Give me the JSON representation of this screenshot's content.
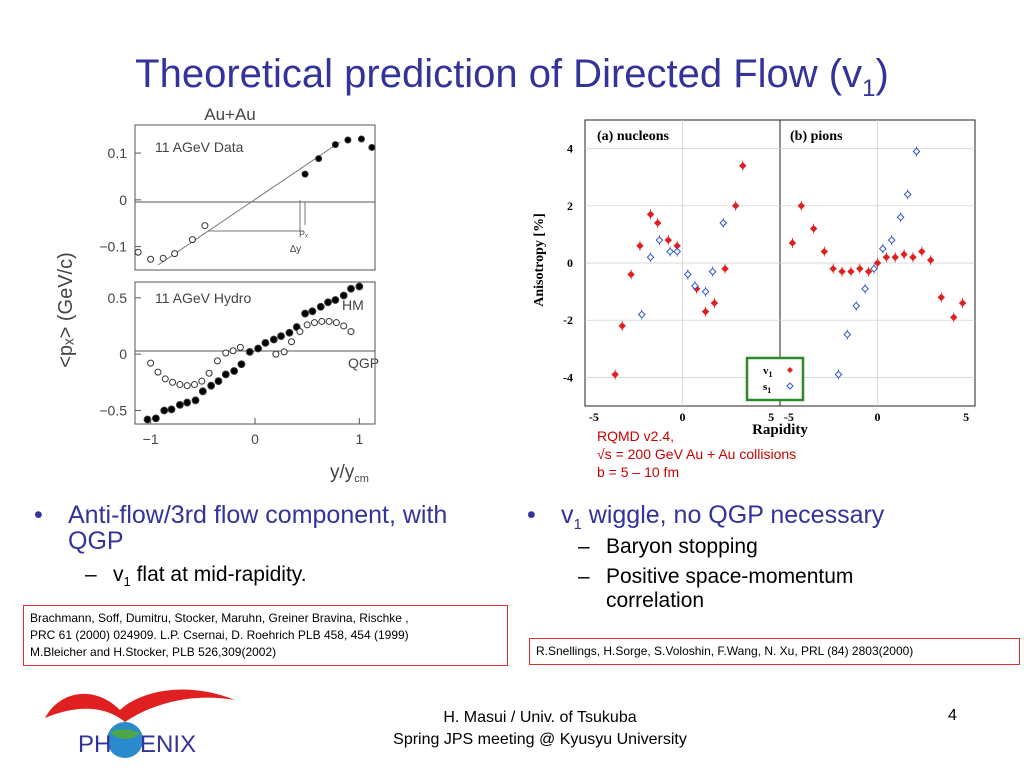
{
  "slide": {
    "title_main": "Theoretical prediction of Directed Flow (v",
    "title_sub": "1",
    "title_end": ")"
  },
  "left_figure": {
    "top_label": "Au+Au",
    "ylabel": "<pₓ> (GeV/c)",
    "xlabel": "y/y",
    "xlabel_sub": "cm",
    "panel_top": {
      "label": "11 AGeV Data",
      "yticks": [
        "0.1",
        "0",
        "−0.1"
      ],
      "annotation_px": "Pₓ",
      "annotation_dy": "∆y"
    },
    "panel_bottom": {
      "label": "11 AGeV Hydro",
      "yticks": [
        "0.5",
        "0",
        "−0.5"
      ],
      "series": [
        "HM",
        "QGP"
      ]
    },
    "xticks": [
      "−1",
      "0",
      "1"
    ]
  },
  "right_figure": {
    "panel_a": "(a) nucleons",
    "panel_b": "(b) pions",
    "ylabel": "Anisotropy [%]",
    "xlabel": "Rapidity",
    "yticks": [
      "4",
      "2",
      "0",
      "-2",
      "-4"
    ],
    "xticks_a": [
      "-5",
      "0",
      "5"
    ],
    "xticks_b": [
      "-5",
      "0",
      "5"
    ],
    "legend": [
      {
        "label": "v",
        "sub": "1",
        "color": "#e02020"
      },
      {
        "label": "s",
        "sub": "1",
        "color": "#3355cc"
      }
    ],
    "legend_box_color": "#2a8a2a"
  },
  "chart_data": [
    {
      "type": "scatter",
      "title": "11 AGeV Data",
      "xlabel": "y/y_cm",
      "ylabel": "<p_x> (GeV/c)",
      "xlim": [
        -1.15,
        1.15
      ],
      "ylim": [
        -0.15,
        0.16
      ],
      "series": [
        {
          "marker": "open",
          "x": [
            -1.12,
            -1.0,
            -0.88,
            -0.77,
            -0.6,
            -0.48
          ],
          "y": [
            -0.112,
            -0.127,
            -0.125,
            -0.115,
            -0.085,
            -0.055
          ]
        },
        {
          "marker": "filled",
          "x": [
            0.48,
            0.61,
            0.77,
            0.89,
            1.02,
            1.12
          ],
          "y": [
            0.055,
            0.088,
            0.118,
            0.128,
            0.13,
            0.112
          ]
        }
      ]
    },
    {
      "type": "scatter",
      "title": "11 AGeV Hydro",
      "xlabel": "y/y_cm",
      "xlim": [
        -1.15,
        1.15
      ],
      "ylim": [
        -0.62,
        0.64
      ],
      "series": [
        {
          "name": "HM",
          "marker": "filled",
          "x": [
            -1.03,
            -0.95,
            -0.87,
            -0.8,
            -0.72,
            -0.65,
            -0.57,
            -0.5,
            -0.42,
            -0.35,
            -0.28,
            -0.2,
            -0.13,
            -0.05,
            0.03,
            0.1,
            0.18,
            0.25,
            0.33,
            0.4,
            0.48,
            0.55,
            0.63,
            0.7,
            0.77,
            0.85,
            0.92,
            1.0
          ],
          "y": [
            -0.58,
            -0.57,
            -0.5,
            -0.49,
            -0.45,
            -0.43,
            -0.41,
            -0.33,
            -0.28,
            -0.24,
            -0.18,
            -0.15,
            -0.09,
            0.02,
            0.05,
            0.1,
            0.13,
            0.16,
            0.19,
            0.24,
            0.36,
            0.38,
            0.42,
            0.46,
            0.48,
            0.52,
            0.58,
            0.6
          ]
        },
        {
          "name": "QGP",
          "marker": "open",
          "x": [
            -1.0,
            -0.93,
            -0.86,
            -0.79,
            -0.72,
            -0.65,
            -0.58,
            -0.51,
            -0.44,
            -0.36,
            -0.28,
            -0.21,
            -0.14,
            0.2,
            0.28,
            0.35,
            0.43,
            0.5,
            0.57,
            0.64,
            0.71,
            0.78,
            0.85,
            0.92
          ],
          "y": [
            -0.08,
            -0.16,
            -0.22,
            -0.25,
            -0.27,
            -0.28,
            -0.27,
            -0.24,
            -0.17,
            -0.06,
            0.01,
            0.03,
            0.06,
            0.0,
            0.02,
            0.11,
            0.2,
            0.26,
            0.28,
            0.29,
            0.29,
            0.28,
            0.25,
            0.2
          ]
        }
      ]
    },
    {
      "type": "scatter",
      "title": "(a) nucleons",
      "xlabel": "Rapidity",
      "ylabel": "Anisotropy [%]",
      "xlim": [
        -5.5,
        5.5
      ],
      "ylim": [
        -5,
        5
      ],
      "series": [
        {
          "name": "v1",
          "marker": "filled-diamond",
          "x": [
            -3.8,
            -3.4,
            -2.9,
            -2.4,
            -1.8,
            -1.4,
            -0.8,
            -0.3,
            0.3,
            0.8,
            1.3,
            1.8,
            2.4,
            3.0,
            3.4
          ],
          "y": [
            -3.9,
            -2.2,
            -0.4,
            0.6,
            1.7,
            1.4,
            0.8,
            0.6,
            -0.4,
            -0.9,
            -1.7,
            -1.4,
            -0.2,
            2.0,
            3.4
          ]
        },
        {
          "name": "s1",
          "marker": "open-diamond",
          "x": [
            -2.3,
            -1.8,
            -1.3,
            -0.7,
            -0.3,
            0.3,
            0.7,
            1.3,
            1.7,
            2.3
          ],
          "y": [
            -1.8,
            0.2,
            0.8,
            0.4,
            0.4,
            -0.4,
            -0.8,
            -1.0,
            -0.3,
            1.4
          ]
        }
      ]
    },
    {
      "type": "scatter",
      "title": "(b) pions",
      "xlabel": "Rapidity",
      "xlim": [
        -5.5,
        5.5
      ],
      "ylim": [
        -5,
        5
      ],
      "series": [
        {
          "name": "v1",
          "marker": "filled-diamond",
          "x": [
            -4.8,
            -4.3,
            -3.6,
            -3.0,
            -2.5,
            -2.0,
            -1.5,
            -1.0,
            -0.5,
            0.0,
            0.5,
            1.0,
            1.5,
            2.0,
            2.5,
            3.0,
            3.6,
            4.3,
            4.8
          ],
          "y": [
            0.7,
            2.0,
            1.2,
            0.4,
            -0.2,
            -0.3,
            -0.3,
            -0.2,
            -0.3,
            0.0,
            0.2,
            0.2,
            0.3,
            0.2,
            0.4,
            0.1,
            -1.2,
            -1.9,
            -1.4
          ]
        },
        {
          "name": "s1",
          "marker": "open-diamond",
          "x": [
            -2.2,
            -1.7,
            -1.2,
            -0.7,
            -0.2,
            0.3,
            0.8,
            1.3,
            1.7,
            2.2
          ],
          "y": [
            -3.9,
            -2.5,
            -1.5,
            -0.9,
            -0.2,
            0.5,
            0.8,
            1.6,
            2.4,
            3.9
          ]
        }
      ]
    }
  ],
  "rqmd": {
    "line1": "RQMD v2.4,",
    "line2": "√s = 200 GeV Au + Au collisions",
    "line3": "b = 5 – 10 fm"
  },
  "left_text": {
    "bullet": "Anti-flow/3rd flow component, with QGP",
    "sub1_pre": "v",
    "sub1_sub": "1",
    "sub1_post": " flat at mid-rapidity."
  },
  "right_text": {
    "bullet_pre": "v",
    "bullet_sub": "1",
    "bullet_post": " wiggle, no QGP necessary",
    "sub1": "Baryon stopping",
    "sub2": "Positive space-momentum correlation"
  },
  "refs": {
    "left_line1": "Brachmann, Soff, Dumitru, Stocker, Maruhn, Greiner Bravina, Rischke ,",
    "left_line2": "PRC 61 (2000) 024909. L.P. Csernai, D. Roehrich PLB 458, 454 (1999)",
    "left_line3": "M.Bleicher and H.Stocker, PLB 526,309(2002)",
    "right": "R.Snellings, H.Sorge, S.Voloshin, F.Wang, N. Xu, PRL (84) 2803(2000)"
  },
  "logo": {
    "text_pre": "PH",
    "text_post": "ENIX",
    "color": "#333399",
    "swoosh_color": "#e02020"
  },
  "footer": {
    "line1": "H. Masui / Univ. of Tsukuba",
    "line2": "Spring JPS meeting @ Kyusyu University",
    "page": "4"
  }
}
